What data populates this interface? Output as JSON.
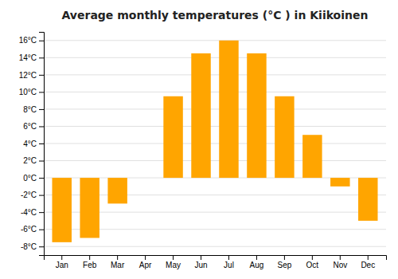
{
  "chart_data": {
    "type": "bar",
    "title": "Average monthly temperatures (°C ) in Kiikoinen",
    "categories": [
      "Jan",
      "Feb",
      "Mar",
      "Apr",
      "May",
      "Jun",
      "Jul",
      "Aug",
      "Sep",
      "Oct",
      "Nov",
      "Dec"
    ],
    "values": [
      -7.5,
      -7.0,
      -3.0,
      0.0,
      9.5,
      14.5,
      16.0,
      14.5,
      9.5,
      5.0,
      -1.0,
      -5.0
    ],
    "color": "#FFA500",
    "ylim": [
      -9,
      17
    ],
    "yticks": [
      {
        "value": -8,
        "label": "-8°C"
      },
      {
        "value": -6,
        "label": "-6°C"
      },
      {
        "value": -4,
        "label": "-4°C"
      },
      {
        "value": -2,
        "label": "-2°C"
      },
      {
        "value": 0,
        "label": "0°C"
      },
      {
        "value": 2,
        "label": "2°C"
      },
      {
        "value": 4,
        "label": "4°C"
      },
      {
        "value": 6,
        "label": "6°C"
      },
      {
        "value": 8,
        "label": "8°C"
      },
      {
        "value": 10,
        "label": "10°C"
      },
      {
        "value": 12,
        "label": "12°C"
      },
      {
        "value": 14,
        "label": "14°C"
      },
      {
        "value": 16,
        "label": "16°C"
      }
    ],
    "grid": true
  }
}
